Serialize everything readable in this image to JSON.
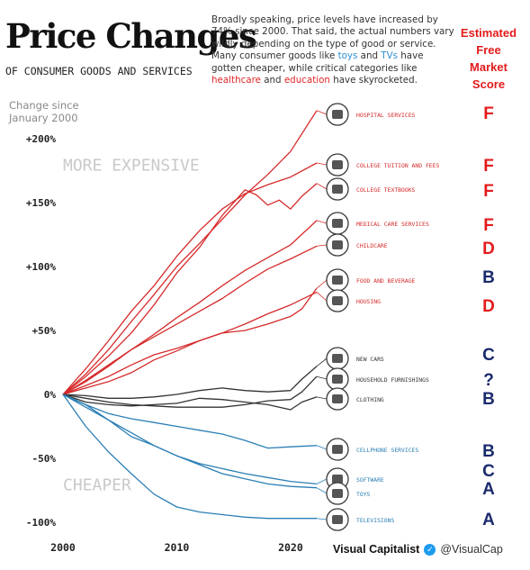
{
  "header": {
    "title": "Price Changes",
    "subtitle": "OF CONSUMER GOODS AND SERVICES",
    "blurb": [
      {
        "text": "Broadly speaking, price levels have increased by 74% since 2000. That said, the actual numbers vary wildly depending on the type of good or service. Many consumer goods like "
      },
      {
        "text": "toys",
        "color": "#2f8fd0"
      },
      {
        "text": " and "
      },
      {
        "text": "TVs",
        "color": "#2f8fd0"
      },
      {
        "text": " have gotten cheaper, while critical categories like "
      },
      {
        "text": "healthcare",
        "color": "#e0262b"
      },
      {
        "text": " and "
      },
      {
        "text": "education",
        "color": "#e0262b"
      },
      {
        "text": " have skyrocketed."
      }
    ],
    "score_header": [
      "Estimated",
      "Free",
      "Market",
      "Score"
    ]
  },
  "axis_note": [
    "Change since",
    "January 2000"
  ],
  "footer": {
    "brand": "Visual Capitalist",
    "handle": "@VisualCap"
  },
  "colors": {
    "up": "#d62a2a",
    "flat": "#333333",
    "down": "#2b7fb5",
    "score_red": "#e31b1b",
    "score_navy": "#1a2a6c",
    "zone_text": "#c9c9c9"
  },
  "chart_data": {
    "type": "line",
    "title": "Price Changes",
    "subtitle": "OF CONSUMER GOODS AND SERVICES",
    "ylabel": "Change since January 2000",
    "x_ticks": [
      2000,
      2010,
      2020
    ],
    "y_ticks": [
      {
        "value": 200,
        "label": "+200%"
      },
      {
        "value": 150,
        "label": "+150%"
      },
      {
        "value": 100,
        "label": "+100%"
      },
      {
        "value": 50,
        "label": "+50%"
      },
      {
        "value": 0,
        "label": "0%"
      },
      {
        "value": -50,
        "label": "-50%"
      },
      {
        "value": -100,
        "label": "-100%"
      }
    ],
    "xlim": [
      2000,
      2022.3
    ],
    "ylim": [
      -100,
      200
    ],
    "zones": [
      {
        "text": "MORE EXPENSIVE",
        "x": 2000,
        "y": 175
      },
      {
        "text": "CHEAPER",
        "x": 2000,
        "y": -75
      }
    ],
    "series": [
      {
        "name": "HOSPITAL SERVICES",
        "group": "up",
        "icon": "hospital-icon",
        "score": "F",
        "x": [
          2000,
          2002,
          2004,
          2006,
          2008,
          2010,
          2012,
          2014,
          2016,
          2018,
          2020,
          2022.3
        ],
        "y": [
          0,
          16,
          35,
          57,
          78,
          100,
          118,
          137,
          156,
          172,
          190,
          222
        ]
      },
      {
        "name": "COLLEGE TUITION AND FEES",
        "group": "up",
        "icon": "graduation-cap-icon",
        "score": "F",
        "x": [
          2000,
          2002,
          2004,
          2006,
          2008,
          2010,
          2012,
          2014,
          2016,
          2018,
          2020,
          2022.3
        ],
        "y": [
          0,
          20,
          42,
          65,
          85,
          108,
          128,
          145,
          157,
          164,
          170,
          181
        ]
      },
      {
        "name": "COLLEGE TEXTBOOKS",
        "group": "up",
        "icon": "textbook-icon",
        "score": "F",
        "x": [
          2000,
          2002,
          2004,
          2006,
          2008,
          2010,
          2012,
          2014,
          2016,
          2017,
          2018,
          2019,
          2020,
          2021,
          2022.3
        ],
        "y": [
          0,
          14,
          30,
          48,
          70,
          95,
          115,
          140,
          160,
          156,
          148,
          152,
          145,
          155,
          165
        ]
      },
      {
        "name": "MEDICAL CARE SERVICES",
        "group": "up",
        "icon": "camera-icon",
        "score": "F",
        "x": [
          2000,
          2002,
          2004,
          2006,
          2008,
          2010,
          2012,
          2014,
          2016,
          2018,
          2020,
          2022.3
        ],
        "y": [
          0,
          10,
          22,
          35,
          47,
          60,
          72,
          85,
          97,
          107,
          117,
          136
        ]
      },
      {
        "name": "CHILDCARE",
        "group": "up",
        "icon": "stroller-icon",
        "score": "D",
        "x": [
          2000,
          2002,
          2004,
          2006,
          2008,
          2010,
          2012,
          2014,
          2016,
          2018,
          2020,
          2022.3
        ],
        "y": [
          0,
          11,
          23,
          35,
          45,
          55,
          65,
          75,
          87,
          98,
          106,
          116
        ]
      },
      {
        "name": "FOOD AND BEVERAGE",
        "group": "up",
        "icon": "food-icon",
        "score": "B",
        "x": [
          2000,
          2002,
          2004,
          2006,
          2008,
          2010,
          2012,
          2014,
          2016,
          2018,
          2020,
          2021,
          2022.3
        ],
        "y": [
          0,
          5,
          10,
          17,
          27,
          34,
          42,
          48,
          50,
          55,
          61,
          67,
          83
        ]
      },
      {
        "name": "HOUSING",
        "group": "up",
        "icon": "house-icon",
        "score": "D",
        "x": [
          2000,
          2002,
          2004,
          2006,
          2008,
          2010,
          2012,
          2014,
          2016,
          2018,
          2020,
          2022.3
        ],
        "y": [
          0,
          7,
          14,
          23,
          31,
          36,
          42,
          48,
          55,
          63,
          70,
          80
        ]
      },
      {
        "name": "NEW CARS",
        "group": "flat",
        "icon": "car-icon",
        "score": "C",
        "x": [
          2000,
          2002,
          2004,
          2006,
          2008,
          2010,
          2012,
          2014,
          2016,
          2018,
          2020,
          2021,
          2022.3
        ],
        "y": [
          0,
          -1,
          -3,
          -3,
          -2,
          0,
          3,
          5,
          3,
          2,
          3,
          12,
          22
        ]
      },
      {
        "name": "HOUSEHOLD FURNISHINGS",
        "group": "flat",
        "icon": "sofa-icon",
        "score": "?",
        "x": [
          2000,
          2002,
          2004,
          2006,
          2008,
          2010,
          2012,
          2014,
          2016,
          2018,
          2020,
          2021,
          2022.3
        ],
        "y": [
          0,
          -3,
          -6,
          -8,
          -9,
          -10,
          -10,
          -10,
          -8,
          -5,
          -4,
          2,
          14
        ]
      },
      {
        "name": "CLOTHING",
        "group": "flat",
        "icon": "shirt-icon",
        "score": "B",
        "x": [
          2000,
          2002,
          2004,
          2006,
          2008,
          2010,
          2012,
          2014,
          2016,
          2018,
          2020,
          2021,
          2022.3
        ],
        "y": [
          0,
          -6,
          -8,
          -9,
          -8,
          -7,
          -3,
          -4,
          -6,
          -8,
          -12,
          -6,
          -2
        ]
      },
      {
        "name": "CELLPHONE SERVICES",
        "group": "down",
        "icon": "cellphone-icon",
        "score": "B",
        "x": [
          2000,
          2002,
          2004,
          2006,
          2008,
          2010,
          2012,
          2014,
          2016,
          2018,
          2020,
          2022.3
        ],
        "y": [
          0,
          -8,
          -15,
          -19,
          -22,
          -25,
          -28,
          -31,
          -36,
          -42,
          -41,
          -40
        ]
      },
      {
        "name": "SOFTWARE",
        "group": "down",
        "icon": "software-icon",
        "score": "C",
        "x": [
          2000,
          2002,
          2004,
          2006,
          2008,
          2010,
          2012,
          2014,
          2016,
          2018,
          2020,
          2022.3
        ],
        "y": [
          0,
          -8,
          -20,
          -33,
          -40,
          -48,
          -54,
          -58,
          -62,
          -65,
          -68,
          -70
        ]
      },
      {
        "name": "TOYS",
        "group": "down",
        "icon": "toy-icon",
        "score": "A",
        "x": [
          2000,
          2002,
          2004,
          2006,
          2008,
          2010,
          2012,
          2014,
          2016,
          2018,
          2020,
          2022.3
        ],
        "y": [
          0,
          -10,
          -20,
          -30,
          -40,
          -48,
          -55,
          -62,
          -66,
          -70,
          -72,
          -73
        ]
      },
      {
        "name": "TELEVISIONS",
        "group": "down",
        "icon": "tv-icon",
        "score": "A",
        "x": [
          2000,
          2002,
          2004,
          2006,
          2008,
          2010,
          2012,
          2014,
          2016,
          2018,
          2020,
          2022.3
        ],
        "y": [
          0,
          -25,
          -45,
          -62,
          -78,
          -88,
          -92,
          -94,
          -96,
          -97,
          -97,
          -97
        ]
      }
    ]
  }
}
